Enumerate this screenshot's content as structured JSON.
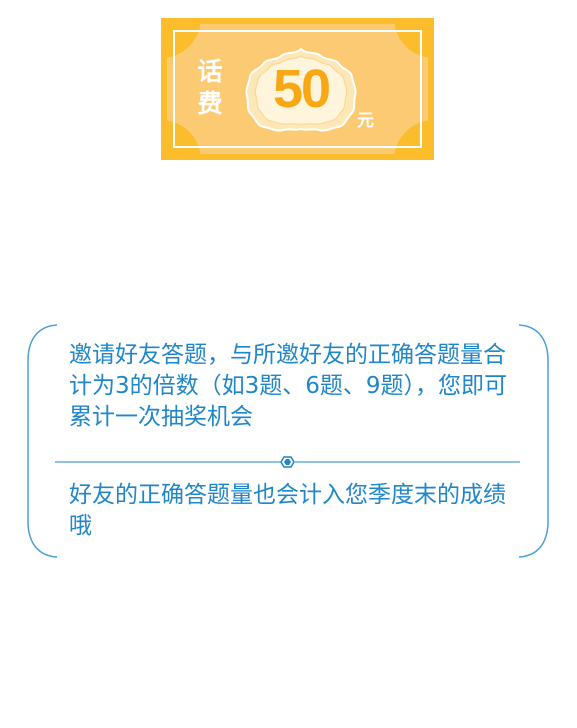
{
  "voucher": {
    "label": "话费",
    "amount": "50",
    "unit": "元"
  },
  "rules": {
    "items": [
      {
        "text": "邀请好友答题，与所邀好友的正确答题量合计为3的倍数（如3题、6题、9题），您即可累计一次抽奖机会"
      },
      {
        "text": "好友的正确答题量也会计入您季度末的成绩哦"
      }
    ]
  },
  "colors": {
    "voucher_gold": "#fbbd2c",
    "voucher_light": "#fcca73",
    "amount_orange": "#f8a715",
    "text_blue": "#1f86c8",
    "border_blue": "#4a9fd8"
  }
}
